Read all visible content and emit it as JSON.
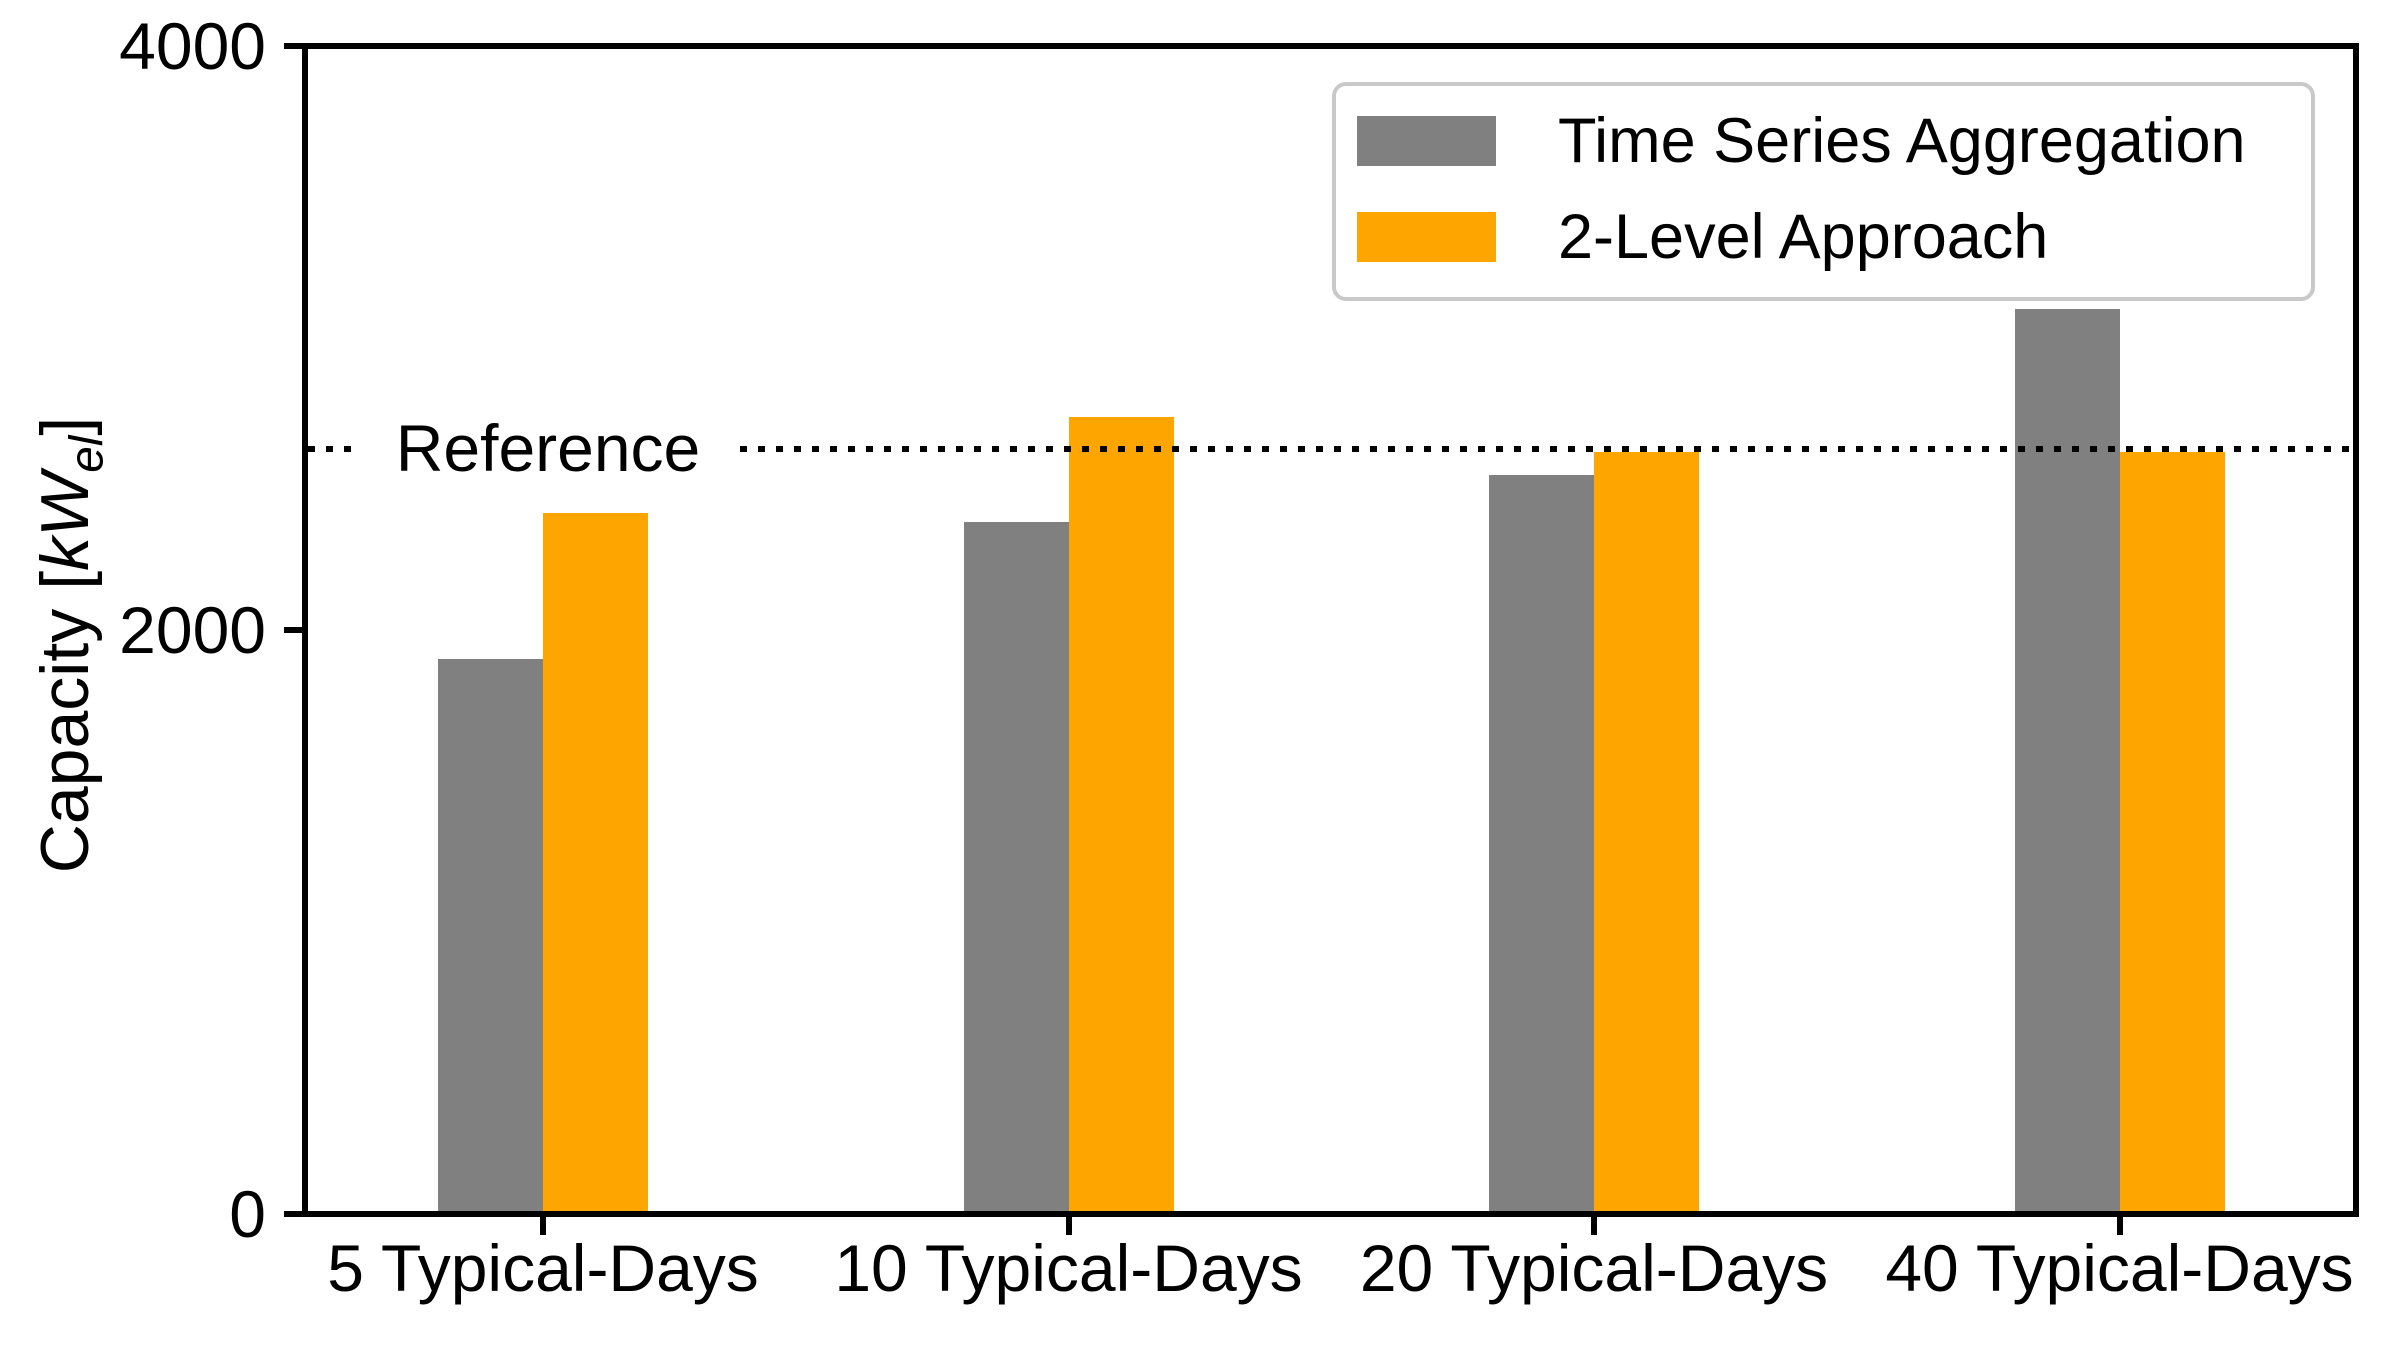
{
  "chart_data": {
    "type": "bar",
    "title": "",
    "categories": [
      "5 Typical-Days",
      "10 Typical-Days",
      "20 Typical-Days",
      "40 Typical-Days"
    ],
    "series": [
      {
        "name": "Time Series Aggregation",
        "color": "#808080",
        "values": [
          1900,
          2370,
          2530,
          3100
        ]
      },
      {
        "name": "2-Level Approach",
        "color": "#ffa500",
        "values": [
          2400,
          2730,
          2610,
          2610
        ]
      }
    ],
    "reference_line": {
      "label": "Reference",
      "value": 2620,
      "style": "dotted",
      "color": "#000000"
    },
    "ylabel": "Capacity [kW_el]",
    "ylabel_parts": {
      "prefix": "Capacity [",
      "unit": "kW",
      "unit_sub": "el",
      "suffix": "]"
    },
    "xlabel": "",
    "yticks": [
      "0",
      "2000",
      "4000"
    ],
    "ytick_values": [
      0,
      2000,
      4000
    ],
    "ylim": [
      0,
      4000
    ],
    "grid": false,
    "legend_position": "upper right",
    "axis_color": "#000000",
    "background_color": "#ffffff",
    "legend_border_color": "#c9c9c9"
  }
}
